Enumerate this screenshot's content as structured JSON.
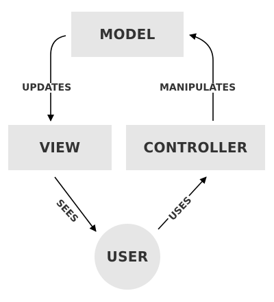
{
  "nodes": {
    "model": "MODEL",
    "view": "VIEW",
    "controller": "CONTROLLER",
    "user": "USER"
  },
  "edges": {
    "updates": "UPDATES",
    "manipulates": "MANIPULATES",
    "sees": "SEES",
    "uses": "USES"
  },
  "colors": {
    "node_fill": "#e6e6e6",
    "text": "#333333",
    "arrow": "#000000",
    "background": "#ffffff"
  }
}
